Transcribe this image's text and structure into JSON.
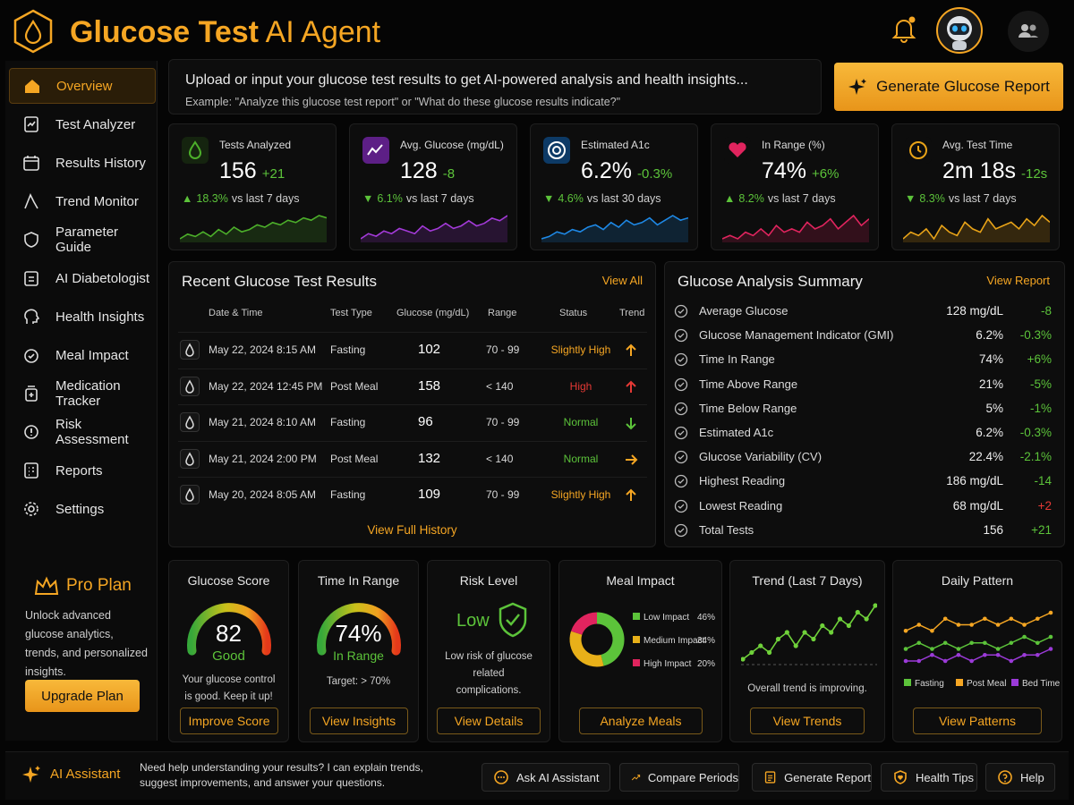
{
  "header": {
    "title_bold": "Glucose Test",
    "title_light": "AI Agent"
  },
  "sidebar": {
    "items": [
      {
        "label": "Overview",
        "icon": "home-icon",
        "active": true
      },
      {
        "label": "Test Analyzer",
        "icon": "analyzer-icon"
      },
      {
        "label": "Results History",
        "icon": "calendar-icon"
      },
      {
        "label": "Trend Monitor",
        "icon": "trend-icon"
      },
      {
        "label": "Parameter Guide",
        "icon": "shield-icon"
      },
      {
        "label": "AI Diabetologist",
        "icon": "clipboard-icon"
      },
      {
        "label": "Health Insights",
        "icon": "head-icon"
      },
      {
        "label": "Meal Impact",
        "icon": "meal-icon"
      },
      {
        "label": "Medication Tracker",
        "icon": "medication-icon"
      },
      {
        "label": "Risk Assessment",
        "icon": "risk-icon"
      },
      {
        "label": "Reports",
        "icon": "report-icon"
      },
      {
        "label": "Settings",
        "icon": "gear-icon"
      }
    ],
    "pro": {
      "title": "Pro Plan",
      "desc": "Unlock advanced glucose analytics, trends, and personalized insights.",
      "button": "Upgrade Plan"
    }
  },
  "prompt": {
    "line1": "Upload or input your glucose test results to get AI-powered analysis and health insights...",
    "line2": "Example: \"Analyze this glucose test report\" or \"What do these glucose results indicate?\""
  },
  "generate_button": "Generate Glucose Report",
  "stats": [
    {
      "label": "Tests Analyzed",
      "value": "156",
      "delta": "+21",
      "sub_arrow": "▲",
      "sub_pct": "18.3%",
      "sub_text": "vs last 7 days",
      "color": "#4caf2a",
      "icon": "drop-icon",
      "spark": [
        4,
        6,
        5,
        7,
        5,
        8,
        6,
        9,
        7,
        8,
        10,
        9,
        11,
        10,
        12,
        11,
        13,
        12,
        14,
        13
      ]
    },
    {
      "label": "Avg. Glucose (mg/dL)",
      "value": "128",
      "delta": "-8",
      "sub_arrow": "▼",
      "sub_pct": "6.1%",
      "sub_text": "vs last 7 days",
      "color": "#a33ad8",
      "icon": "chart-icon",
      "spark": [
        5,
        7,
        6,
        8,
        7,
        9,
        8,
        7,
        10,
        8,
        9,
        11,
        9,
        10,
        12,
        10,
        11,
        13,
        12,
        14
      ]
    },
    {
      "label": "Estimated A1c",
      "value": "6.2%",
      "delta": "-0.3%",
      "sub_arrow": "▼",
      "sub_pct": "4.6%",
      "sub_text": "vs last 30 days",
      "color": "#1e88e5",
      "icon": "target-icon",
      "spark": [
        4,
        5,
        7,
        6,
        8,
        7,
        9,
        10,
        8,
        11,
        9,
        12,
        10,
        11,
        13,
        10,
        12,
        14,
        12,
        13
      ]
    },
    {
      "label": "In Range (%)",
      "value": "74%",
      "delta": "+6%",
      "sub_arrow": "▲",
      "sub_pct": "8.2%",
      "sub_text": "vs last 7 days",
      "color": "#e0245e",
      "icon": "heart-icon",
      "spark": [
        5,
        6,
        5,
        7,
        6,
        8,
        6,
        9,
        7,
        8,
        7,
        10,
        8,
        9,
        11,
        8,
        10,
        12,
        9,
        11
      ]
    },
    {
      "label": "Avg. Test Time",
      "value": "2m 18s",
      "delta": "-12s",
      "sub_arrow": "▼",
      "sub_pct": "8.3%",
      "sub_text": "vs last 7 days",
      "color": "#e8a318",
      "icon": "clock-icon",
      "spark": [
        6,
        8,
        7,
        9,
        6,
        10,
        8,
        7,
        11,
        9,
        8,
        12,
        9,
        10,
        11,
        9,
        12,
        10,
        13,
        11
      ]
    }
  ],
  "recent": {
    "title": "Recent Glucose Test Results",
    "view_all": "View All",
    "headers": [
      "Date & Time",
      "Test Type",
      "Glucose (mg/dL)",
      "Range",
      "Status",
      "Trend"
    ],
    "rows": [
      {
        "date": "May 22, 2024",
        "time": "8:15 AM",
        "type": "Fasting",
        "glucose": "102",
        "range": "70 - 99",
        "status": "Slightly High",
        "status_color": "#f5a623",
        "trend": "up",
        "trend_color": "#f5a623"
      },
      {
        "date": "May 22, 2024",
        "time": "12:45 PM",
        "type": "Post Meal",
        "glucose": "158",
        "range": "< 140",
        "status": "High",
        "status_color": "#e53935",
        "trend": "up",
        "trend_color": "#e53935"
      },
      {
        "date": "May 21, 2024",
        "time": "8:10 AM",
        "type": "Fasting",
        "glucose": "96",
        "range": "70 - 99",
        "status": "Normal",
        "status_color": "#5cc33a",
        "trend": "down",
        "trend_color": "#5cc33a"
      },
      {
        "date": "May 21, 2024",
        "time": "2:00 PM",
        "type": "Post Meal",
        "glucose": "132",
        "range": "< 140",
        "status": "Normal",
        "status_color": "#5cc33a",
        "trend": "right",
        "trend_color": "#f5a623"
      },
      {
        "date": "May 20, 2024",
        "time": "8:05 AM",
        "type": "Fasting",
        "glucose": "109",
        "range": "70 - 99",
        "status": "Slightly High",
        "status_color": "#f5a623",
        "trend": "up",
        "trend_color": "#f5a623"
      }
    ],
    "view_full": "View Full History"
  },
  "summary": {
    "title": "Glucose Analysis Summary",
    "view_report": "View Report",
    "rows": [
      {
        "name": "Average Glucose",
        "value": "128 mg/dL",
        "delta": "-8",
        "color": "#5cc33a"
      },
      {
        "name": "Glucose Management Indicator (GMI)",
        "value": "6.2%",
        "delta": "-0.3%",
        "color": "#5cc33a"
      },
      {
        "name": "Time In Range",
        "value": "74%",
        "delta": "+6%",
        "color": "#5cc33a"
      },
      {
        "name": "Time Above Range",
        "value": "21%",
        "delta": "-5%",
        "color": "#5cc33a"
      },
      {
        "name": "Time Below Range",
        "value": "5%",
        "delta": "-1%",
        "color": "#5cc33a"
      },
      {
        "name": "Estimated A1c",
        "value": "6.2%",
        "delta": "-0.3%",
        "color": "#5cc33a"
      },
      {
        "name": "Glucose Variability (CV)",
        "value": "22.4%",
        "delta": "-2.1%",
        "color": "#5cc33a"
      },
      {
        "name": "Highest Reading",
        "value": "186 mg/dL",
        "delta": "-14",
        "color": "#5cc33a"
      },
      {
        "name": "Lowest Reading",
        "value": "68 mg/dL",
        "delta": "+2",
        "color": "#e53935"
      },
      {
        "name": "Total Tests",
        "value": "156",
        "delta": "+21",
        "color": "#5cc33a"
      }
    ]
  },
  "score": {
    "title": "Glucose Score",
    "value": "82",
    "level": 0.82,
    "label": "Good",
    "note": "Your glucose control is good. Keep it up!",
    "button": "Improve Score"
  },
  "tir": {
    "title": "Time In Range",
    "value": "74%",
    "level": 0.74,
    "label": "In Range",
    "target": "Target: > 70%",
    "button": "View Insights"
  },
  "risk": {
    "title": "Risk Level",
    "value": "Low",
    "note": "Low risk of glucose related complications.",
    "button": "View Details"
  },
  "meal": {
    "title": "Meal Impact",
    "button": "Analyze Meals",
    "chart_data": {
      "type": "pie",
      "slices": [
        {
          "label": "Low Impact",
          "value": 46,
          "display": "46%",
          "color": "#5cc33a"
        },
        {
          "label": "Medium Impact",
          "value": 34,
          "display": "34%",
          "color": "#e8b019"
        },
        {
          "label": "High Impact",
          "value": 20,
          "display": "20%",
          "color": "#e0245e"
        }
      ]
    }
  },
  "trend7": {
    "title": "Trend (Last 7 Days)",
    "note": "Overall trend is improving.",
    "button": "View Trends",
    "chart_data": {
      "type": "line",
      "series": [
        {
          "values": [
            2,
            3,
            4,
            3,
            5,
            6,
            4,
            6,
            5,
            7,
            6,
            8,
            7,
            9,
            8,
            10
          ]
        }
      ],
      "color": "#6fd13a"
    }
  },
  "daily": {
    "title": "Daily Pattern",
    "button": "View Patterns",
    "chart_data": {
      "type": "line",
      "series": [
        {
          "name": "Fasting",
          "color": "#5cc33a",
          "values": [
            5,
            6,
            5,
            6,
            5,
            6,
            6,
            5,
            6,
            7,
            6,
            7
          ]
        },
        {
          "name": "Post Meal",
          "color": "#f5a623",
          "values": [
            8,
            9,
            8,
            10,
            9,
            9,
            10,
            9,
            10,
            9,
            10,
            11
          ]
        },
        {
          "name": "Bed Time",
          "color": "#9b3ad8",
          "values": [
            3,
            3,
            4,
            3,
            4,
            3,
            4,
            4,
            3,
            4,
            4,
            5
          ]
        }
      ]
    }
  },
  "bottom": {
    "label": "AI Assistant",
    "desc": "Need help understanding your results? I can explain trends, suggest improvements, and answer your questions.",
    "buttons": [
      {
        "label": "Ask AI Assistant",
        "icon": "chat-icon"
      },
      {
        "label": "Compare Periods",
        "icon": "compare-icon"
      },
      {
        "label": "Generate Report",
        "icon": "document-icon"
      },
      {
        "label": "Health Tips",
        "icon": "shield-heart-icon"
      },
      {
        "label": "Help",
        "icon": "help-icon"
      }
    ]
  }
}
